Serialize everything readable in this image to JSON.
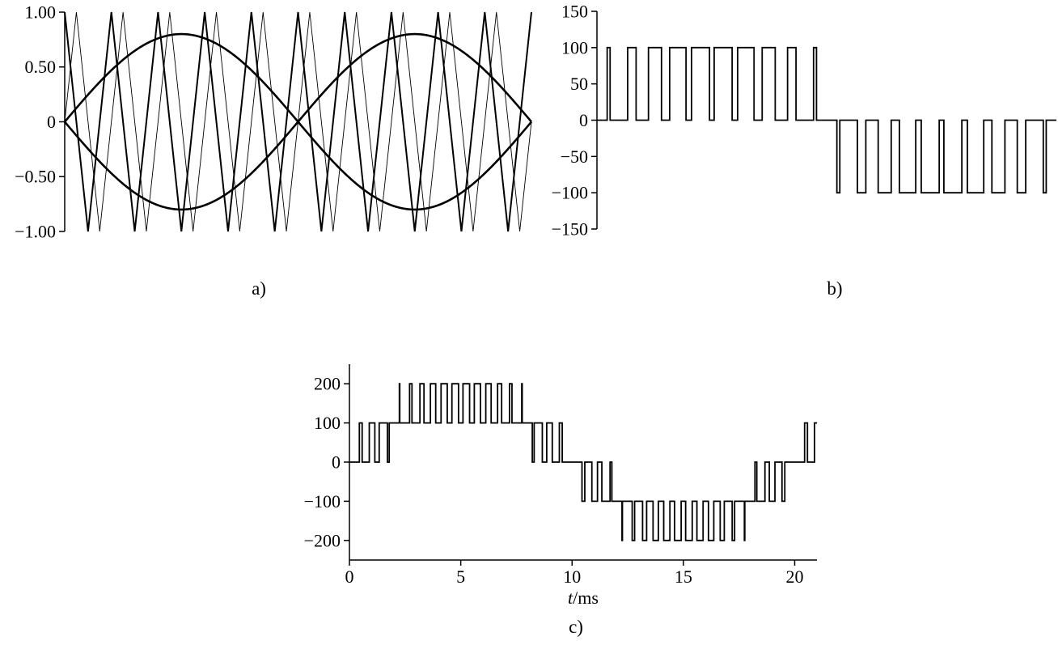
{
  "figure": {
    "background": "#ffffff",
    "stroke_color": "#000000"
  },
  "chart_data": [
    {
      "id": "a",
      "type": "line",
      "caption": "a)",
      "x_range_ms": [
        0,
        20
      ],
      "ylim": [
        -1,
        1
      ],
      "ytick_values": [
        1,
        0.5,
        0,
        -0.5,
        -1
      ],
      "ytick_labels": [
        "1.00",
        "0.50",
        "0",
        "−0.50",
        "−1.00"
      ],
      "series": [
        {
          "name": "reference-sine",
          "kind": "sine",
          "sign": 1,
          "amplitude": 0.8,
          "period_ms": 20,
          "width": 2.6
        },
        {
          "name": "reference-sine-inverted",
          "kind": "sine",
          "sign": -1,
          "amplitude": 0.8,
          "period_ms": 20,
          "width": 2.6
        },
        {
          "name": "carrier-triangle-1",
          "kind": "triangle",
          "amplitude": 1,
          "period_ms": 2,
          "shift_ms": 0,
          "width": 2.0
        },
        {
          "name": "carrier-triangle-2",
          "kind": "triangle",
          "amplitude": 1,
          "period_ms": 2,
          "shift_ms": 0.5,
          "width": 0.9
        }
      ]
    },
    {
      "id": "b",
      "type": "line",
      "caption": "b)",
      "x_range_ms": [
        0,
        20
      ],
      "ylim": [
        -150,
        150
      ],
      "ytick_values": [
        150,
        100,
        50,
        0,
        -50,
        -100,
        -150
      ],
      "ytick_labels": [
        "150",
        "100",
        "50",
        "0",
        "−50",
        "−100",
        "−150"
      ],
      "waveform": {
        "kind": "unipolar-pwm",
        "cell_amplitude": 100,
        "levels": [
          -100,
          0,
          100
        ],
        "modulation_index": 0.8,
        "fundamental_period_ms": 20,
        "carrier_period_ms": 2,
        "carrier_shifts_ms": [
          0
        ]
      }
    },
    {
      "id": "c",
      "type": "line",
      "caption": "c)",
      "x_range_ms": [
        0,
        21
      ],
      "ylim": [
        -250,
        250
      ],
      "ytick_values": [
        200,
        100,
        0,
        -100,
        -200
      ],
      "ytick_labels": [
        "200",
        "100",
        "0",
        "−100",
        "−200"
      ],
      "xtick_values": [
        0,
        5,
        10,
        15,
        20
      ],
      "xtick_labels": [
        "0",
        "5",
        "10",
        "15",
        "20"
      ],
      "xlabel": {
        "variable": "t",
        "unit": "/ms"
      },
      "waveform": {
        "kind": "cascaded-unipolar-pwm",
        "cell_amplitude": 100,
        "levels": [
          -200,
          -100,
          0,
          100,
          200
        ],
        "modulation_index": 0.8,
        "fundamental_period_ms": 20,
        "carrier_period_ms": 2,
        "carrier_shifts_ms": [
          0,
          0.5
        ]
      }
    }
  ]
}
